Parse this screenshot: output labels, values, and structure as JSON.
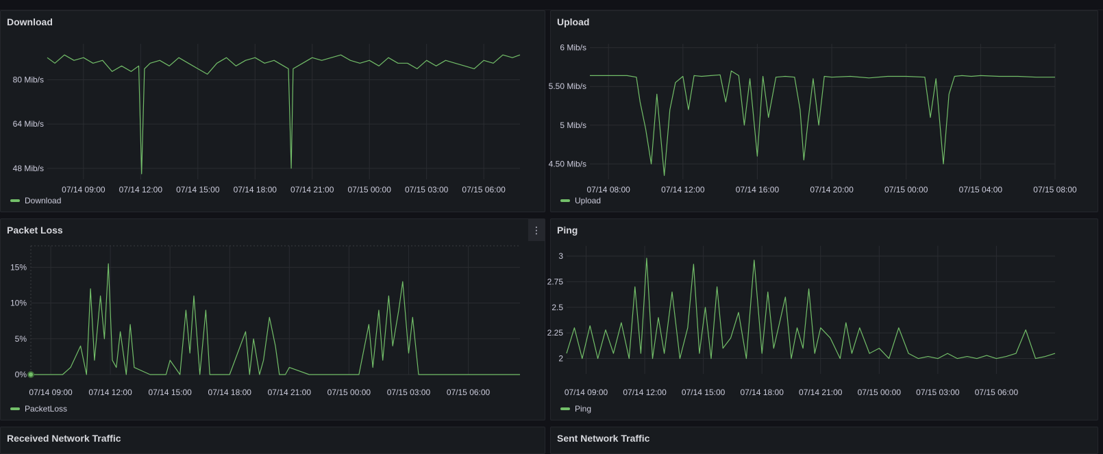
{
  "colors": {
    "series": "#73bf69",
    "background": "#111217",
    "panel": "#181b1f",
    "grid": "#2a2c31"
  },
  "panels": {
    "download": {
      "title": "Download",
      "legend": "Download"
    },
    "upload": {
      "title": "Upload",
      "legend": "Upload"
    },
    "packet_loss": {
      "title": "Packet Loss",
      "legend": "PacketLoss",
      "menu_icon": "kebab-menu-icon"
    },
    "ping": {
      "title": "Ping",
      "legend": "Ping"
    },
    "received": {
      "title": "Received Network Traffic"
    },
    "sent": {
      "title": "Sent Network Traffic"
    }
  },
  "chart_data": [
    {
      "id": "download",
      "type": "line",
      "title": "Download",
      "x_tick_labels": [
        "07/14 09:00",
        "07/14 12:00",
        "07/14 15:00",
        "07/14 18:00",
        "07/14 21:00",
        "07/15 00:00",
        "07/15 03:00",
        "07/15 06:00"
      ],
      "y_tick_labels": [
        "48 Mib/s",
        "64 Mib/s",
        "80 Mib/s"
      ],
      "y_ticks": [
        48,
        64,
        80
      ],
      "ylim": [
        44,
        93
      ],
      "x_hours_range": [
        7.1,
        31.9
      ],
      "grid": true,
      "legend": "bottom-left",
      "series": [
        {
          "name": "Download",
          "x_hours": [
            7.1,
            7.5,
            8,
            8.5,
            9,
            9.5,
            10,
            10.5,
            11,
            11.5,
            11.9,
            12.05,
            12.2,
            12.5,
            13,
            13.5,
            14,
            14.5,
            15,
            15.5,
            16,
            16.5,
            17,
            17.5,
            18,
            18.5,
            19,
            19.5,
            19.75,
            19.9,
            20,
            20.5,
            21,
            21.5,
            22,
            22.5,
            23,
            23.5,
            24,
            24.5,
            25,
            25.5,
            26,
            26.5,
            27,
            27.5,
            28,
            28.5,
            29,
            29.5,
            30,
            30.5,
            31,
            31.5,
            31.9
          ],
          "values": [
            88,
            86,
            89,
            87,
            88,
            86,
            87,
            83,
            85,
            83,
            85,
            46,
            84,
            86,
            87,
            85,
            88,
            86,
            84,
            82,
            86,
            88,
            85,
            87,
            88,
            86,
            87,
            85,
            84,
            48,
            84,
            86,
            88,
            87,
            88,
            89,
            87,
            86,
            87,
            85,
            88,
            86,
            86,
            84,
            87,
            85,
            87,
            86,
            85,
            84,
            87,
            86,
            89,
            88,
            89
          ]
        }
      ]
    },
    {
      "id": "upload",
      "type": "line",
      "title": "Upload",
      "x_tick_labels": [
        "07/14 08:00",
        "07/14 12:00",
        "07/14 16:00",
        "07/14 20:00",
        "07/15 00:00",
        "07/15 04:00",
        "07/15 08:00"
      ],
      "y_tick_labels": [
        "4.50 Mib/s",
        "5 Mib/s",
        "5.50 Mib/s",
        "6 Mib/s"
      ],
      "y_ticks": [
        4.5,
        5,
        5.5,
        6
      ],
      "ylim": [
        4.3,
        6.05
      ],
      "x_hours_range": [
        7.0,
        32.0
      ],
      "grid": true,
      "legend": "bottom-left",
      "series": [
        {
          "name": "Upload",
          "x_hours": [
            7,
            8,
            9,
            9.5,
            9.7,
            10,
            10.3,
            10.6,
            11,
            11.3,
            11.6,
            12,
            12.3,
            12.6,
            13,
            13.5,
            14,
            14.3,
            14.6,
            15,
            15.3,
            15.6,
            16,
            16.3,
            16.6,
            17,
            17.5,
            18,
            18.3,
            18.5,
            18.7,
            19,
            19.3,
            19.6,
            20,
            21,
            22,
            23,
            24,
            25,
            25.3,
            25.6,
            26,
            26.3,
            26.6,
            27,
            27.5,
            28,
            29,
            30,
            31,
            32
          ],
          "values": [
            5.64,
            5.64,
            5.64,
            5.62,
            5.3,
            4.95,
            4.5,
            5.4,
            4.35,
            5.2,
            5.55,
            5.63,
            5.2,
            5.64,
            5.63,
            5.64,
            5.65,
            5.3,
            5.7,
            5.64,
            5.0,
            5.6,
            4.6,
            5.63,
            5.1,
            5.62,
            5.63,
            5.62,
            5.2,
            4.55,
            5.0,
            5.6,
            5.0,
            5.63,
            5.62,
            5.63,
            5.61,
            5.63,
            5.63,
            5.62,
            5.1,
            5.6,
            4.5,
            5.4,
            5.63,
            5.64,
            5.63,
            5.64,
            5.63,
            5.63,
            5.62,
            5.62
          ]
        }
      ]
    },
    {
      "id": "packet_loss",
      "type": "line",
      "title": "Packet Loss",
      "x_tick_labels": [
        "07/14 09:00",
        "07/14 12:00",
        "07/14 15:00",
        "07/14 18:00",
        "07/14 21:00",
        "07/15 00:00",
        "07/15 03:00",
        "07/15 06:00"
      ],
      "y_tick_labels": [
        "0%",
        "5%",
        "10%",
        "15%"
      ],
      "y_ticks": [
        0,
        5,
        10,
        15
      ],
      "ylim": [
        0,
        18
      ],
      "x_hours_range": [
        8.0,
        32.6
      ],
      "grid": true,
      "legend": "bottom-left",
      "series": [
        {
          "name": "PacketLoss",
          "x_hours": [
            8,
            9,
            9.6,
            10,
            10.5,
            10.8,
            11,
            11.2,
            11.5,
            11.7,
            11.9,
            12.1,
            12.3,
            12.5,
            12.8,
            13,
            13.2,
            14,
            14.8,
            15,
            15.5,
            15.8,
            16,
            16.2,
            16.5,
            16.8,
            17,
            17.3,
            17.5,
            18,
            18.8,
            19,
            19.2,
            19.5,
            19.7,
            20,
            20.3,
            20.5,
            20.8,
            21,
            22,
            22.5,
            24,
            24.5,
            25,
            25.2,
            25.5,
            25.7,
            26,
            26.2,
            26.5,
            26.7,
            27,
            27.2,
            27.5,
            28,
            30,
            32.6
          ],
          "values": [
            0,
            0,
            0,
            1,
            4,
            0,
            12,
            2,
            11,
            5,
            15.5,
            2,
            1,
            6,
            0,
            7,
            1,
            0,
            0,
            2,
            0,
            9,
            3,
            11,
            0,
            9,
            0,
            0,
            0,
            0,
            6,
            0,
            5,
            0,
            2,
            8,
            4,
            0,
            0,
            1,
            0,
            0,
            0,
            0,
            7,
            1,
            9,
            2,
            11,
            4,
            9,
            13,
            3,
            8,
            0,
            0,
            0,
            0
          ]
        }
      ]
    },
    {
      "id": "ping",
      "type": "line",
      "title": "Ping",
      "x_tick_labels": [
        "07/14 09:00",
        "07/14 12:00",
        "07/14 15:00",
        "07/14 18:00",
        "07/14 21:00",
        "07/15 00:00",
        "07/15 03:00",
        "07/15 06:00"
      ],
      "y_tick_labels": [
        "2",
        "2.25",
        "2.5",
        "2.75",
        "3"
      ],
      "y_ticks": [
        2,
        2.25,
        2.5,
        2.75,
        3
      ],
      "ylim": [
        1.85,
        3.1
      ],
      "x_hours_range": [
        8.0,
        33.0
      ],
      "grid": true,
      "legend": "bottom-left",
      "series": [
        {
          "name": "Ping",
          "x_hours": [
            8,
            8.4,
            8.8,
            9.2,
            9.6,
            10,
            10.4,
            10.8,
            11.2,
            11.5,
            11.8,
            12.1,
            12.4,
            12.7,
            13,
            13.4,
            13.8,
            14.2,
            14.5,
            14.8,
            15.1,
            15.4,
            15.7,
            16,
            16.4,
            16.8,
            17.2,
            17.6,
            18,
            18.3,
            18.6,
            18.9,
            19.2,
            19.5,
            19.8,
            20.1,
            20.4,
            20.7,
            21,
            21.5,
            22,
            22.3,
            22.6,
            23,
            23.5,
            24,
            24.5,
            25,
            25.5,
            26,
            26.5,
            27,
            27.5,
            28,
            28.5,
            29,
            29.5,
            30,
            30.5,
            31,
            31.5,
            32,
            32.5,
            33
          ],
          "values": [
            2.05,
            2.3,
            2.0,
            2.32,
            2.0,
            2.28,
            2.05,
            2.35,
            2.0,
            2.7,
            2.05,
            2.98,
            2.0,
            2.4,
            2.05,
            2.65,
            2.0,
            2.3,
            2.92,
            2.05,
            2.5,
            2.0,
            2.7,
            2.1,
            2.2,
            2.45,
            2.0,
            2.96,
            2.05,
            2.65,
            2.1,
            2.35,
            2.6,
            2.0,
            2.3,
            2.1,
            2.68,
            2.05,
            2.3,
            2.2,
            2.0,
            2.35,
            2.05,
            2.3,
            2.05,
            2.1,
            2.0,
            2.3,
            2.05,
            2.0,
            2.02,
            2.0,
            2.05,
            2.0,
            2.02,
            2.0,
            2.03,
            2.0,
            2.02,
            2.05,
            2.28,
            2.0,
            2.02,
            2.05
          ]
        }
      ]
    }
  ]
}
